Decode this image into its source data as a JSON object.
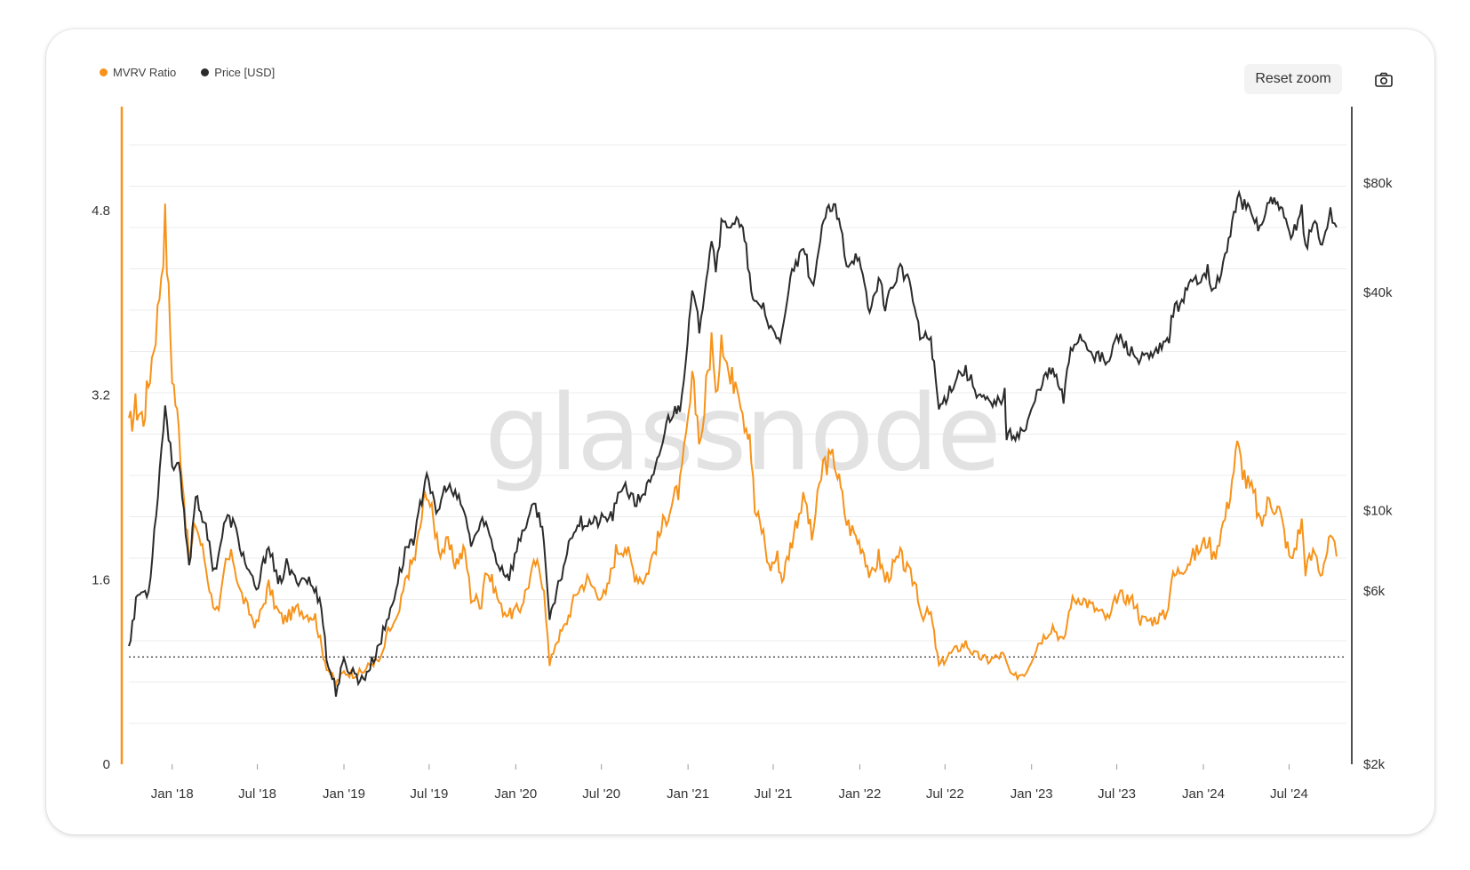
{
  "legend": {
    "mvrv_label": "MVRV Ratio",
    "price_label": "Price [USD]"
  },
  "toolbar": {
    "reset_zoom_label": "Reset zoom"
  },
  "watermark": "glassnode",
  "colors": {
    "mvrv": "#f7931a",
    "price": "#2b2b2b",
    "grid": "#ececec"
  },
  "chart_data": {
    "type": "line",
    "title": "",
    "x_ticks": [
      "Jan '18",
      "Jul '18",
      "Jan '19",
      "Jul '19",
      "Jan '20",
      "Jul '20",
      "Jan '21",
      "Jul '21",
      "Jan '22",
      "Jul '22",
      "Jan '23",
      "Jul '23",
      "Jan '24",
      "Jul '24"
    ],
    "left_axis": {
      "ticks": [
        "0",
        "1.6",
        "3.2",
        "4.8"
      ],
      "range": [
        0,
        5.7
      ],
      "scale": "linear"
    },
    "right_axis": {
      "ticks": [
        "$2k",
        "$6k",
        "$10k",
        "$40k",
        "$80k"
      ],
      "tick_values": [
        2000,
        6000,
        10000,
        40000,
        80000
      ],
      "range": [
        2000,
        130000
      ],
      "scale": "log"
    },
    "x_range": [
      "2017-10-01",
      "2024-10-31"
    ],
    "reference_line": {
      "axis": "left",
      "value": 0.93,
      "style": "dotted"
    },
    "series": [
      {
        "name": "MVRV Ratio",
        "axis": "left",
        "points": [
          [
            "2017-10-01",
            2.9
          ],
          [
            "2017-10-15",
            3.1
          ],
          [
            "2017-11-01",
            3.0
          ],
          [
            "2017-11-15",
            3.4
          ],
          [
            "2017-12-01",
            3.9
          ],
          [
            "2017-12-17",
            4.7
          ],
          [
            "2018-01-01",
            3.4
          ],
          [
            "2018-01-15",
            2.9
          ],
          [
            "2018-02-06",
            1.75
          ],
          [
            "2018-02-20",
            2.1
          ],
          [
            "2018-03-10",
            1.8
          ],
          [
            "2018-03-25",
            1.45
          ],
          [
            "2018-04-10",
            1.3
          ],
          [
            "2018-04-25",
            1.75
          ],
          [
            "2018-05-10",
            1.8
          ],
          [
            "2018-05-25",
            1.5
          ],
          [
            "2018-06-10",
            1.35
          ],
          [
            "2018-06-29",
            1.2
          ],
          [
            "2018-07-15",
            1.4
          ],
          [
            "2018-07-25",
            1.55
          ],
          [
            "2018-08-10",
            1.35
          ],
          [
            "2018-08-25",
            1.25
          ],
          [
            "2018-09-10",
            1.3
          ],
          [
            "2018-09-25",
            1.35
          ],
          [
            "2018-10-15",
            1.3
          ],
          [
            "2018-11-01",
            1.28
          ],
          [
            "2018-11-15",
            1.0
          ],
          [
            "2018-11-25",
            0.85
          ],
          [
            "2018-12-15",
            0.7
          ],
          [
            "2019-01-01",
            0.8
          ],
          [
            "2019-01-20",
            0.78
          ],
          [
            "2019-02-10",
            0.8
          ],
          [
            "2019-03-01",
            0.88
          ],
          [
            "2019-03-20",
            0.9
          ],
          [
            "2019-04-05",
            1.15
          ],
          [
            "2019-04-25",
            1.25
          ],
          [
            "2019-05-15",
            1.65
          ],
          [
            "2019-06-01",
            1.8
          ],
          [
            "2019-06-26",
            2.4
          ],
          [
            "2019-07-10",
            2.1
          ],
          [
            "2019-07-25",
            1.85
          ],
          [
            "2019-08-10",
            1.9
          ],
          [
            "2019-08-25",
            1.75
          ],
          [
            "2019-09-15",
            1.85
          ],
          [
            "2019-09-28",
            1.45
          ],
          [
            "2019-10-20",
            1.4
          ],
          [
            "2019-10-28",
            1.7
          ],
          [
            "2019-11-15",
            1.55
          ],
          [
            "2019-12-01",
            1.35
          ],
          [
            "2019-12-20",
            1.3
          ],
          [
            "2020-01-10",
            1.35
          ],
          [
            "2020-02-12",
            1.75
          ],
          [
            "2020-03-01",
            1.55
          ],
          [
            "2020-03-13",
            0.85
          ],
          [
            "2020-03-25",
            1.05
          ],
          [
            "2020-04-15",
            1.2
          ],
          [
            "2020-05-10",
            1.5
          ],
          [
            "2020-06-01",
            1.6
          ],
          [
            "2020-06-20",
            1.5
          ],
          [
            "2020-07-10",
            1.45
          ],
          [
            "2020-08-01",
            1.85
          ],
          [
            "2020-08-20",
            1.9
          ],
          [
            "2020-09-10",
            1.65
          ],
          [
            "2020-10-01",
            1.6
          ],
          [
            "2020-10-25",
            1.9
          ],
          [
            "2020-11-20",
            2.2
          ],
          [
            "2020-12-15",
            2.4
          ],
          [
            "2020-12-28",
            2.8
          ],
          [
            "2021-01-10",
            3.3
          ],
          [
            "2021-01-28",
            2.8
          ],
          [
            "2021-02-20",
            3.7
          ],
          [
            "2021-03-01",
            3.1
          ],
          [
            "2021-03-13",
            3.8
          ],
          [
            "2021-04-01",
            3.3
          ],
          [
            "2021-04-15",
            3.4
          ],
          [
            "2021-05-01",
            3.0
          ],
          [
            "2021-05-12",
            2.9
          ],
          [
            "2021-05-23",
            2.2
          ],
          [
            "2021-06-10",
            2.0
          ],
          [
            "2021-06-22",
            1.7
          ],
          [
            "2021-07-10",
            1.8
          ],
          [
            "2021-07-20",
            1.6
          ],
          [
            "2021-08-10",
            1.95
          ],
          [
            "2021-08-25",
            2.2
          ],
          [
            "2021-09-07",
            2.3
          ],
          [
            "2021-09-21",
            1.95
          ],
          [
            "2021-10-15",
            2.6
          ],
          [
            "2021-11-08",
            2.65
          ],
          [
            "2021-11-25",
            2.3
          ],
          [
            "2021-12-04",
            2.1
          ],
          [
            "2021-12-20",
            2.0
          ],
          [
            "2022-01-10",
            1.85
          ],
          [
            "2022-01-24",
            1.6
          ],
          [
            "2022-02-10",
            1.8
          ],
          [
            "2022-02-24",
            1.6
          ],
          [
            "2022-03-28",
            1.8
          ],
          [
            "2022-04-15",
            1.65
          ],
          [
            "2022-05-01",
            1.55
          ],
          [
            "2022-05-12",
            1.3
          ],
          [
            "2022-06-01",
            1.3
          ],
          [
            "2022-06-18",
            0.85
          ],
          [
            "2022-07-10",
            0.95
          ],
          [
            "2022-08-14",
            1.05
          ],
          [
            "2022-09-01",
            0.95
          ],
          [
            "2022-10-01",
            0.9
          ],
          [
            "2022-11-01",
            0.95
          ],
          [
            "2022-11-21",
            0.75
          ],
          [
            "2022-12-20",
            0.8
          ],
          [
            "2023-01-15",
            1.05
          ],
          [
            "2023-02-15",
            1.2
          ],
          [
            "2023-03-10",
            1.05
          ],
          [
            "2023-03-25",
            1.4
          ],
          [
            "2023-04-14",
            1.45
          ],
          [
            "2023-05-15",
            1.35
          ],
          [
            "2023-06-15",
            1.25
          ],
          [
            "2023-07-01",
            1.45
          ],
          [
            "2023-07-20",
            1.45
          ],
          [
            "2023-08-10",
            1.4
          ],
          [
            "2023-08-20",
            1.25
          ],
          [
            "2023-09-15",
            1.25
          ],
          [
            "2023-10-15",
            1.3
          ],
          [
            "2023-10-25",
            1.6
          ],
          [
            "2023-11-15",
            1.7
          ],
          [
            "2023-12-10",
            1.8
          ],
          [
            "2024-01-10",
            1.95
          ],
          [
            "2024-01-23",
            1.8
          ],
          [
            "2024-02-20",
            2.2
          ],
          [
            "2024-03-13",
            2.75
          ],
          [
            "2024-04-01",
            2.45
          ],
          [
            "2024-04-20",
            2.3
          ],
          [
            "2024-05-01",
            2.05
          ],
          [
            "2024-05-20",
            2.3
          ],
          [
            "2024-06-10",
            2.2
          ],
          [
            "2024-07-05",
            1.75
          ],
          [
            "2024-07-28",
            2.1
          ],
          [
            "2024-08-05",
            1.7
          ],
          [
            "2024-08-25",
            1.85
          ],
          [
            "2024-09-06",
            1.65
          ],
          [
            "2024-09-27",
            1.95
          ],
          [
            "2024-10-10",
            1.8
          ]
        ]
      },
      {
        "name": "Price [USD]",
        "axis": "right",
        "points": [
          [
            "2017-10-01",
            4300
          ],
          [
            "2017-10-20",
            5900
          ],
          [
            "2017-11-12",
            6000
          ],
          [
            "2017-11-28",
            9900
          ],
          [
            "2017-12-17",
            19500
          ],
          [
            "2018-01-01",
            13500
          ],
          [
            "2018-01-15",
            13500
          ],
          [
            "2018-02-06",
            6900
          ],
          [
            "2018-02-20",
            11200
          ],
          [
            "2018-03-10",
            9300
          ],
          [
            "2018-04-01",
            6800
          ],
          [
            "2018-04-25",
            9500
          ],
          [
            "2018-05-10",
            9300
          ],
          [
            "2018-06-01",
            7500
          ],
          [
            "2018-06-29",
            5900
          ],
          [
            "2018-07-25",
            8200
          ],
          [
            "2018-08-14",
            6200
          ],
          [
            "2018-09-01",
            7100
          ],
          [
            "2018-09-15",
            6500
          ],
          [
            "2018-10-15",
            6500
          ],
          [
            "2018-11-14",
            5600
          ],
          [
            "2018-11-25",
            3900
          ],
          [
            "2018-12-15",
            3200
          ],
          [
            "2019-01-01",
            3800
          ],
          [
            "2019-02-08",
            3400
          ],
          [
            "2019-03-01",
            3800
          ],
          [
            "2019-04-02",
            4900
          ],
          [
            "2019-05-15",
            8000
          ],
          [
            "2019-06-01",
            8500
          ],
          [
            "2019-06-26",
            13000
          ],
          [
            "2019-07-16",
            9600
          ],
          [
            "2019-08-06",
            11800
          ],
          [
            "2019-09-10",
            10300
          ],
          [
            "2019-09-28",
            8100
          ],
          [
            "2019-10-26",
            9500
          ],
          [
            "2019-11-25",
            7100
          ],
          [
            "2019-12-18",
            6600
          ],
          [
            "2020-01-15",
            8800
          ],
          [
            "2020-02-12",
            10400
          ],
          [
            "2020-03-01",
            8500
          ],
          [
            "2020-03-13",
            4900
          ],
          [
            "2020-04-30",
            8800
          ],
          [
            "2020-05-15",
            9300
          ],
          [
            "2020-06-20",
            9300
          ],
          [
            "2020-07-25",
            9700
          ],
          [
            "2020-08-17",
            12000
          ],
          [
            "2020-09-10",
            10400
          ],
          [
            "2020-10-20",
            12300
          ],
          [
            "2020-11-20",
            18000
          ],
          [
            "2020-12-15",
            19500
          ],
          [
            "2020-12-31",
            29000
          ],
          [
            "2021-01-10",
            40000
          ],
          [
            "2021-01-25",
            32000
          ],
          [
            "2021-02-20",
            57000
          ],
          [
            "2021-03-01",
            47000
          ],
          [
            "2021-03-13",
            61000
          ],
          [
            "2021-04-14",
            63000
          ],
          [
            "2021-05-01",
            57000
          ],
          [
            "2021-05-19",
            37000
          ],
          [
            "2021-06-10",
            37000
          ],
          [
            "2021-06-22",
            32000
          ],
          [
            "2021-07-20",
            30000
          ],
          [
            "2021-08-10",
            46000
          ],
          [
            "2021-09-07",
            52000
          ],
          [
            "2021-09-21",
            41000
          ],
          [
            "2021-10-20",
            66000
          ],
          [
            "2021-11-10",
            68000
          ],
          [
            "2021-11-25",
            57000
          ],
          [
            "2021-12-04",
            48000
          ],
          [
            "2021-12-27",
            51000
          ],
          [
            "2022-01-22",
            35000
          ],
          [
            "2022-02-10",
            44000
          ],
          [
            "2022-02-24",
            37000
          ],
          [
            "2022-03-28",
            47000
          ],
          [
            "2022-04-20",
            41000
          ],
          [
            "2022-05-09",
            30000
          ],
          [
            "2022-06-01",
            30000
          ],
          [
            "2022-06-18",
            19000
          ],
          [
            "2022-07-30",
            24000
          ],
          [
            "2022-08-14",
            24300
          ],
          [
            "2022-09-10",
            21000
          ],
          [
            "2022-10-10",
            19300
          ],
          [
            "2022-11-05",
            21000
          ],
          [
            "2022-11-09",
            16000
          ],
          [
            "2022-12-20",
            16800
          ],
          [
            "2023-01-20",
            22500
          ],
          [
            "2023-02-15",
            24500
          ],
          [
            "2023-03-10",
            20200
          ],
          [
            "2023-03-25",
            28000
          ],
          [
            "2023-04-14",
            30400
          ],
          [
            "2023-05-15",
            27000
          ],
          [
            "2023-06-15",
            25500
          ],
          [
            "2023-07-01",
            30500
          ],
          [
            "2023-08-17",
            26000
          ],
          [
            "2023-09-15",
            26500
          ],
          [
            "2023-10-20",
            29500
          ],
          [
            "2023-10-25",
            34500
          ],
          [
            "2023-12-05",
            42000
          ],
          [
            "2024-01-10",
            46500
          ],
          [
            "2024-01-23",
            39500
          ],
          [
            "2024-02-20",
            52000
          ],
          [
            "2024-03-13",
            73000
          ],
          [
            "2024-04-01",
            69000
          ],
          [
            "2024-04-30",
            60000
          ],
          [
            "2024-05-20",
            71000
          ],
          [
            "2024-06-10",
            69500
          ],
          [
            "2024-07-05",
            56000
          ],
          [
            "2024-07-28",
            68500
          ],
          [
            "2024-08-05",
            53000
          ],
          [
            "2024-08-25",
            64000
          ],
          [
            "2024-09-06",
            53500
          ],
          [
            "2024-09-27",
            66000
          ],
          [
            "2024-10-10",
            60500
          ]
        ]
      }
    ]
  }
}
